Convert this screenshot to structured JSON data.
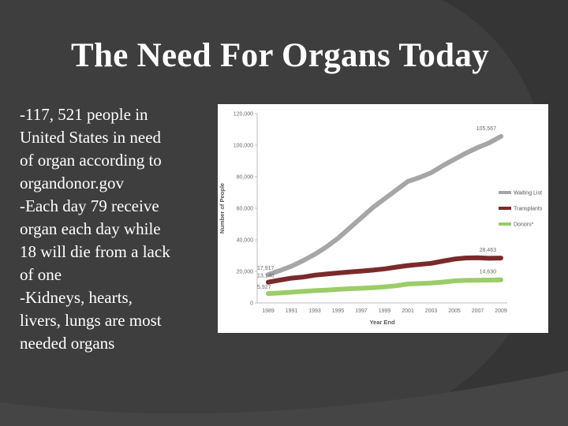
{
  "slide": {
    "title": "The Need For Organs Today",
    "bullets": [
      "-117, 521 people in",
      "United States in need",
      "of organ according to",
      "organdonor.gov",
      "-Each day 79 receive",
      "organ each day while",
      "18 will die from a lack",
      "of one",
      "-Kidneys,  hearts,",
      "livers, lungs are most",
      "needed organs"
    ]
  },
  "chart_data": {
    "type": "line",
    "xlabel": "Year End",
    "ylabel": "Number of People",
    "ylim": [
      0,
      120000
    ],
    "y_ticks": [
      "0",
      "20,000",
      "40,000",
      "60,000",
      "80,000",
      "100,000",
      "120,000"
    ],
    "y_tick_values": [
      0,
      20000,
      40000,
      60000,
      80000,
      100000,
      120000
    ],
    "x_ticks": [
      "1989",
      "1991",
      "1993",
      "1995",
      "1997",
      "1999",
      "2001",
      "2003",
      "2005",
      "2007",
      "2009"
    ],
    "x": [
      1989,
      1990,
      1991,
      1992,
      1993,
      1994,
      1995,
      1996,
      1997,
      1998,
      1999,
      2000,
      2001,
      2002,
      2003,
      2004,
      2005,
      2006,
      2007,
      2008,
      2009
    ],
    "series": [
      {
        "name": "Waiting List",
        "color": "#a6a6a6",
        "values": [
          17917,
          20500,
          23300,
          26800,
          30800,
          35500,
          41000,
          47500,
          54000,
          60500,
          66000,
          71500,
          77000,
          79500,
          82500,
          87000,
          91000,
          95000,
          98500,
          101500,
          105567
        ],
        "labels": [
          {
            "index": 0,
            "text": "17,917"
          },
          {
            "index": 20,
            "text": "105,567"
          }
        ]
      },
      {
        "name": "Transplants",
        "color": "#7b2a2a",
        "values": [
          13140,
          14500,
          15700,
          16400,
          17600,
          18300,
          19000,
          19600,
          20200,
          20800,
          21600,
          22700,
          23700,
          24400,
          25100,
          26500,
          27800,
          28500,
          28600,
          28300,
          28463
        ],
        "labels": [
          {
            "index": 0,
            "text": "13,140"
          },
          {
            "index": 20,
            "text": "28,463"
          }
        ]
      },
      {
        "name": "Donors*",
        "color": "#9ccc6a",
        "values": [
          5927,
          6300,
          6800,
          7300,
          7800,
          8100,
          8600,
          9000,
          9300,
          9700,
          10200,
          10900,
          12000,
          12300,
          12600,
          13200,
          14000,
          14300,
          14400,
          14500,
          14630
        ],
        "labels": [
          {
            "index": 0,
            "text": "5,927"
          },
          {
            "index": 20,
            "text": "14,630"
          }
        ]
      }
    ],
    "legend_position": "right",
    "grid": false
  }
}
